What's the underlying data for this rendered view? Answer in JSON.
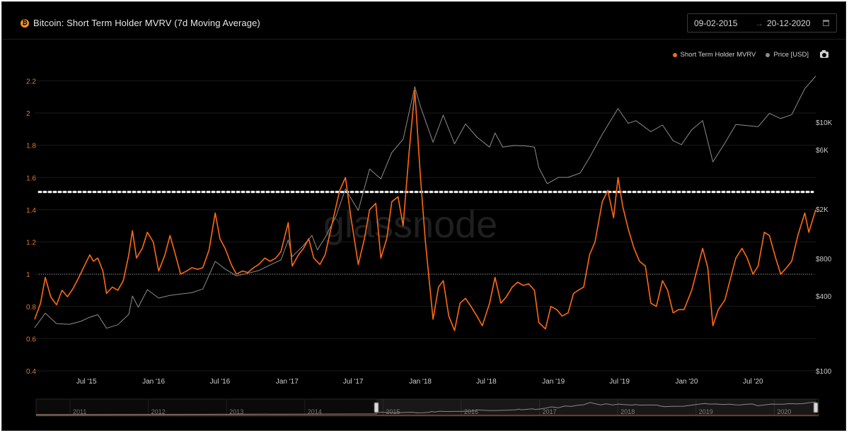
{
  "header": {
    "title": "Bitcoin: Short Term Holder MVRV (7d Moving Average)",
    "icon": "bitcoin-icon",
    "date_start": "09-02-2015",
    "date_end": "20-12-2020"
  },
  "watermark": "glassnode",
  "colors": {
    "mvrv": "#ff6a13",
    "price": "#8c8c8c",
    "threshold": "#ffffff",
    "background": "#000000"
  },
  "chart_data": {
    "type": "line",
    "legend": {
      "placement": "top-right",
      "entries": [
        "Short Term Holder MVRV",
        "Price [USD]"
      ]
    },
    "xlim": [
      "2015-02-09",
      "2020-12-20"
    ],
    "x_ticks": [
      {
        "label": "Jul '15",
        "date": "2015-07-01"
      },
      {
        "label": "Jan '16",
        "date": "2016-01-01"
      },
      {
        "label": "Jul '16",
        "date": "2016-07-01"
      },
      {
        "label": "Jan '17",
        "date": "2017-01-01"
      },
      {
        "label": "Jul '17",
        "date": "2017-07-01"
      },
      {
        "label": "Jan '18",
        "date": "2018-01-01"
      },
      {
        "label": "Jul '18",
        "date": "2018-07-01"
      },
      {
        "label": "Jan '19",
        "date": "2019-01-01"
      },
      {
        "label": "Jul '19",
        "date": "2019-07-01"
      },
      {
        "label": "Jan '20",
        "date": "2020-01-01"
      },
      {
        "label": "Jul '20",
        "date": "2020-07-01"
      }
    ],
    "y_left": {
      "ylim": [
        0.4,
        2.25
      ],
      "ticks": [
        {
          "label": "0.4",
          "value": 0.4
        },
        {
          "label": "0.6",
          "value": 0.6
        },
        {
          "label": "0.8",
          "value": 0.8
        },
        {
          "label": "1",
          "value": 1.0
        },
        {
          "label": "1.2",
          "value": 1.2
        },
        {
          "label": "1.4",
          "value": 1.4
        },
        {
          "label": "1.6",
          "value": 1.6
        },
        {
          "label": "1.8",
          "value": 1.8
        },
        {
          "label": "2",
          "value": 2.0
        },
        {
          "label": "2.2",
          "value": 2.2
        }
      ]
    },
    "y_right": {
      "scale": "log",
      "ylim": [
        100,
        25000
      ],
      "ticks": [
        {
          "label": "$100",
          "value": 100
        },
        {
          "label": "$400",
          "value": 400
        },
        {
          "label": "$800",
          "value": 800
        },
        {
          "label": "$2K",
          "value": 2000
        },
        {
          "label": "$6K",
          "value": 6000
        },
        {
          "label": "$10K",
          "value": 10000
        }
      ]
    },
    "reference_lines": [
      {
        "value": 1.51,
        "style": "dotted",
        "color": "#ffffff"
      },
      {
        "value": 1.0,
        "style": "dotted",
        "color": "#bbbbbb"
      }
    ],
    "navigator_years": [
      "2011",
      "2012",
      "2013",
      "2014",
      "2015",
      "2016",
      "2017",
      "2018",
      "2019",
      "2020"
    ],
    "series": [
      {
        "name": "Short Term Holder MVRV",
        "axis": "left",
        "points": [
          [
            "2015-02-09",
            0.72
          ],
          [
            "2015-02-25",
            0.82
          ],
          [
            "2015-03-10",
            0.98
          ],
          [
            "2015-03-25",
            0.86
          ],
          [
            "2015-04-10",
            0.81
          ],
          [
            "2015-04-25",
            0.9
          ],
          [
            "2015-05-10",
            0.86
          ],
          [
            "2015-05-25",
            0.91
          ],
          [
            "2015-06-10",
            0.98
          ],
          [
            "2015-06-25",
            1.05
          ],
          [
            "2015-07-10",
            1.12
          ],
          [
            "2015-07-20",
            1.08
          ],
          [
            "2015-08-01",
            1.1
          ],
          [
            "2015-08-15",
            1.02
          ],
          [
            "2015-08-25",
            0.88
          ],
          [
            "2015-09-10",
            0.92
          ],
          [
            "2015-09-25",
            0.9
          ],
          [
            "2015-10-10",
            0.96
          ],
          [
            "2015-10-25",
            1.12
          ],
          [
            "2015-11-04",
            1.27
          ],
          [
            "2015-11-15",
            1.1
          ],
          [
            "2015-12-01",
            1.16
          ],
          [
            "2015-12-15",
            1.26
          ],
          [
            "2015-12-31",
            1.2
          ],
          [
            "2016-01-15",
            1.02
          ],
          [
            "2016-02-01",
            1.12
          ],
          [
            "2016-02-15",
            1.24
          ],
          [
            "2016-03-01",
            1.12
          ],
          [
            "2016-03-15",
            1.0
          ],
          [
            "2016-04-01",
            1.02
          ],
          [
            "2016-04-15",
            1.04
          ],
          [
            "2016-05-01",
            1.03
          ],
          [
            "2016-05-15",
            1.04
          ],
          [
            "2016-06-01",
            1.15
          ],
          [
            "2016-06-18",
            1.38
          ],
          [
            "2016-07-01",
            1.22
          ],
          [
            "2016-07-15",
            1.16
          ],
          [
            "2016-08-01",
            1.06
          ],
          [
            "2016-08-15",
            1.0
          ],
          [
            "2016-09-01",
            1.02
          ],
          [
            "2016-09-15",
            1.01
          ],
          [
            "2016-10-01",
            1.04
          ],
          [
            "2016-10-15",
            1.06
          ],
          [
            "2016-11-01",
            1.1
          ],
          [
            "2016-11-15",
            1.08
          ],
          [
            "2016-12-01",
            1.1
          ],
          [
            "2016-12-15",
            1.14
          ],
          [
            "2017-01-04",
            1.32
          ],
          [
            "2017-01-15",
            1.05
          ],
          [
            "2017-02-01",
            1.12
          ],
          [
            "2017-02-15",
            1.16
          ],
          [
            "2017-03-01",
            1.22
          ],
          [
            "2017-03-15",
            1.1
          ],
          [
            "2017-04-01",
            1.06
          ],
          [
            "2017-04-15",
            1.12
          ],
          [
            "2017-05-01",
            1.28
          ],
          [
            "2017-05-25",
            1.52
          ],
          [
            "2017-06-10",
            1.6
          ],
          [
            "2017-06-25",
            1.35
          ],
          [
            "2017-07-15",
            1.06
          ],
          [
            "2017-08-01",
            1.22
          ],
          [
            "2017-08-15",
            1.4
          ],
          [
            "2017-09-01",
            1.44
          ],
          [
            "2017-09-15",
            1.1
          ],
          [
            "2017-10-01",
            1.22
          ],
          [
            "2017-10-15",
            1.45
          ],
          [
            "2017-11-01",
            1.48
          ],
          [
            "2017-11-15",
            1.3
          ],
          [
            "2017-12-01",
            1.75
          ],
          [
            "2017-12-17",
            2.14
          ],
          [
            "2018-01-01",
            1.62
          ],
          [
            "2018-01-15",
            1.2
          ],
          [
            "2018-02-05",
            0.72
          ],
          [
            "2018-02-20",
            0.92
          ],
          [
            "2018-03-05",
            0.96
          ],
          [
            "2018-03-20",
            0.74
          ],
          [
            "2018-04-05",
            0.65
          ],
          [
            "2018-04-20",
            0.82
          ],
          [
            "2018-05-05",
            0.85
          ],
          [
            "2018-05-20",
            0.8
          ],
          [
            "2018-06-05",
            0.74
          ],
          [
            "2018-06-20",
            0.68
          ],
          [
            "2018-07-10",
            0.82
          ],
          [
            "2018-07-25",
            0.98
          ],
          [
            "2018-08-10",
            0.82
          ],
          [
            "2018-08-25",
            0.86
          ],
          [
            "2018-09-10",
            0.92
          ],
          [
            "2018-09-25",
            0.95
          ],
          [
            "2018-10-10",
            0.93
          ],
          [
            "2018-10-25",
            0.94
          ],
          [
            "2018-11-10",
            0.9
          ],
          [
            "2018-11-22",
            0.7
          ],
          [
            "2018-12-10",
            0.66
          ],
          [
            "2018-12-25",
            0.8
          ],
          [
            "2019-01-10",
            0.78
          ],
          [
            "2019-01-25",
            0.74
          ],
          [
            "2019-02-10",
            0.76
          ],
          [
            "2019-02-25",
            0.88
          ],
          [
            "2019-03-10",
            0.9
          ],
          [
            "2019-03-25",
            0.92
          ],
          [
            "2019-04-10",
            1.12
          ],
          [
            "2019-04-25",
            1.2
          ],
          [
            "2019-05-15",
            1.45
          ],
          [
            "2019-05-30",
            1.52
          ],
          [
            "2019-06-15",
            1.35
          ],
          [
            "2019-06-27",
            1.6
          ],
          [
            "2019-07-10",
            1.42
          ],
          [
            "2019-07-25",
            1.28
          ],
          [
            "2019-08-10",
            1.16
          ],
          [
            "2019-08-25",
            1.08
          ],
          [
            "2019-09-10",
            1.05
          ],
          [
            "2019-09-25",
            0.82
          ],
          [
            "2019-10-10",
            0.8
          ],
          [
            "2019-10-27",
            0.96
          ],
          [
            "2019-11-10",
            0.9
          ],
          [
            "2019-11-25",
            0.76
          ],
          [
            "2019-12-10",
            0.78
          ],
          [
            "2019-12-25",
            0.78
          ],
          [
            "2020-01-15",
            0.9
          ],
          [
            "2020-02-14",
            1.16
          ],
          [
            "2020-02-28",
            1.04
          ],
          [
            "2020-03-13",
            0.68
          ],
          [
            "2020-03-28",
            0.78
          ],
          [
            "2020-04-15",
            0.84
          ],
          [
            "2020-05-01",
            0.98
          ],
          [
            "2020-05-15",
            1.1
          ],
          [
            "2020-06-01",
            1.16
          ],
          [
            "2020-06-15",
            1.1
          ],
          [
            "2020-07-01",
            1.0
          ],
          [
            "2020-07-15",
            1.05
          ],
          [
            "2020-08-01",
            1.26
          ],
          [
            "2020-08-15",
            1.24
          ],
          [
            "2020-09-01",
            1.1
          ],
          [
            "2020-09-15",
            1.0
          ],
          [
            "2020-10-01",
            1.04
          ],
          [
            "2020-10-15",
            1.08
          ],
          [
            "2020-11-01",
            1.24
          ],
          [
            "2020-11-20",
            1.38
          ],
          [
            "2020-12-01",
            1.26
          ],
          [
            "2020-12-20",
            1.4
          ]
        ]
      },
      {
        "name": "Price [USD]",
        "axis": "right",
        "points": [
          [
            "2015-02-09",
            222
          ],
          [
            "2015-03-10",
            291
          ],
          [
            "2015-04-10",
            240
          ],
          [
            "2015-05-15",
            237
          ],
          [
            "2015-06-15",
            250
          ],
          [
            "2015-07-10",
            270
          ],
          [
            "2015-08-01",
            283
          ],
          [
            "2015-08-25",
            220
          ],
          [
            "2015-09-25",
            235
          ],
          [
            "2015-10-25",
            285
          ],
          [
            "2015-11-04",
            400
          ],
          [
            "2015-11-20",
            325
          ],
          [
            "2015-12-15",
            450
          ],
          [
            "2016-01-15",
            385
          ],
          [
            "2016-02-15",
            405
          ],
          [
            "2016-03-15",
            415
          ],
          [
            "2016-04-15",
            425
          ],
          [
            "2016-05-15",
            455
          ],
          [
            "2016-06-18",
            760
          ],
          [
            "2016-07-15",
            660
          ],
          [
            "2016-08-15",
            580
          ],
          [
            "2016-09-15",
            610
          ],
          [
            "2016-10-15",
            640
          ],
          [
            "2016-11-15",
            710
          ],
          [
            "2016-12-15",
            780
          ],
          [
            "2017-01-04",
            1130
          ],
          [
            "2017-01-15",
            830
          ],
          [
            "2017-02-15",
            1020
          ],
          [
            "2017-03-10",
            1230
          ],
          [
            "2017-03-25",
            940
          ],
          [
            "2017-04-15",
            1180
          ],
          [
            "2017-05-15",
            1750
          ],
          [
            "2017-06-10",
            2900
          ],
          [
            "2017-07-15",
            1950
          ],
          [
            "2017-08-15",
            4200
          ],
          [
            "2017-09-15",
            3500
          ],
          [
            "2017-10-15",
            5700
          ],
          [
            "2017-11-15",
            7300
          ],
          [
            "2017-12-17",
            19300
          ],
          [
            "2018-01-01",
            13500
          ],
          [
            "2018-02-05",
            6900
          ],
          [
            "2018-03-05",
            11400
          ],
          [
            "2018-04-05",
            6700
          ],
          [
            "2018-05-05",
            9700
          ],
          [
            "2018-06-05",
            7600
          ],
          [
            "2018-07-10",
            6300
          ],
          [
            "2018-07-25",
            8200
          ],
          [
            "2018-08-15",
            6300
          ],
          [
            "2018-09-15",
            6500
          ],
          [
            "2018-10-15",
            6450
          ],
          [
            "2018-11-10",
            6300
          ],
          [
            "2018-11-22",
            4300
          ],
          [
            "2018-12-15",
            3200
          ],
          [
            "2019-01-15",
            3600
          ],
          [
            "2019-02-10",
            3600
          ],
          [
            "2019-03-15",
            3900
          ],
          [
            "2019-04-10",
            5200
          ],
          [
            "2019-05-15",
            8000
          ],
          [
            "2019-06-27",
            12900
          ],
          [
            "2019-07-25",
            9800
          ],
          [
            "2019-08-15",
            10300
          ],
          [
            "2019-09-25",
            8400
          ],
          [
            "2019-10-27",
            9500
          ],
          [
            "2019-11-25",
            7100
          ],
          [
            "2019-12-18",
            6600
          ],
          [
            "2020-01-15",
            8700
          ],
          [
            "2020-02-14",
            10300
          ],
          [
            "2020-03-13",
            4800
          ],
          [
            "2020-04-15",
            6800
          ],
          [
            "2020-05-15",
            9600
          ],
          [
            "2020-06-15",
            9400
          ],
          [
            "2020-07-15",
            9200
          ],
          [
            "2020-08-15",
            11800
          ],
          [
            "2020-09-15",
            10700
          ],
          [
            "2020-10-15",
            11500
          ],
          [
            "2020-11-20",
            18600
          ],
          [
            "2020-12-20",
            23500
          ]
        ]
      }
    ]
  }
}
